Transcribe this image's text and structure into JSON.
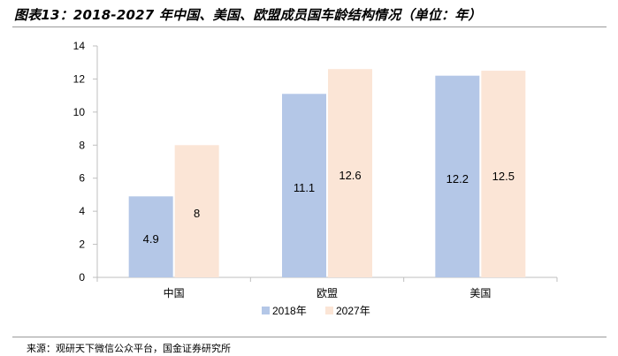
{
  "title": "图表13：2018-2027 年中国、美国、欧盟成员国车龄结构情况（单位：年）",
  "source": "来源：观研天下微信公众平台，国金证券研究所",
  "colors": {
    "series_2018": "#b4c7e7",
    "series_2027": "#fbe5d6",
    "axis": "#bfbfbf"
  },
  "chart_data": {
    "type": "bar",
    "title": "图表13：2018-2027 年中国、美国、欧盟成员国车龄结构情况（单位：年）",
    "xlabel": "",
    "ylabel": "",
    "categories": [
      "中国",
      "欧盟",
      "美国"
    ],
    "series": [
      {
        "name": "2018年",
        "values": [
          4.9,
          11.1,
          12.2
        ]
      },
      {
        "name": "2027年",
        "values": [
          8,
          12.6,
          12.5
        ]
      }
    ],
    "ylim": [
      0,
      14
    ],
    "yticks": [
      0,
      2,
      4,
      6,
      8,
      10,
      12,
      14
    ],
    "grid": false,
    "legend": "bottom"
  }
}
